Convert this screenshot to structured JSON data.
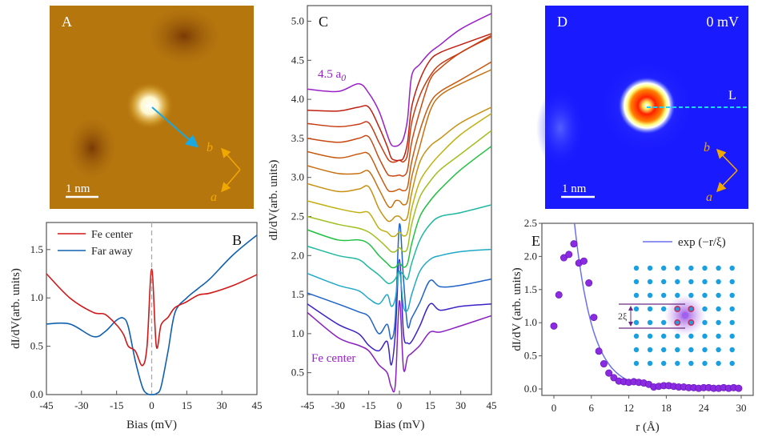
{
  "panels": {
    "A": {
      "label": "A",
      "scale_bar": "1 nm",
      "axis_a": "a",
      "axis_b": "b"
    },
    "D": {
      "label": "D",
      "bias": "0 mV",
      "line_label": "L",
      "scale_bar": "1 nm",
      "axis_a": "a",
      "axis_b": "b"
    }
  },
  "colors": {
    "fe_center": "#d01818",
    "far_away": "#1060b0",
    "fit": "#6a70f0",
    "points": "#8a2be2",
    "lattice": "#1aa0e0",
    "afm": "#b5760e",
    "map": "#1a1aff",
    "axes_arrow": "#f0a800"
  },
  "chart_data": [
    {
      "panel": "B",
      "type": "line",
      "label": "B",
      "xlabel": "Bias (mV)",
      "ylabel": "dI/dV(arb. units)",
      "xlim": [
        -45,
        45
      ],
      "ylim": [
        0,
        1.78
      ],
      "xticks": [
        -45,
        -30,
        -15,
        0,
        15,
        30,
        45
      ],
      "yticks": [
        "0.0",
        "0.5",
        "1.0",
        "1.5"
      ],
      "legend": "top-left",
      "x": [
        -45,
        -35,
        -25,
        -20,
        -15,
        -12,
        -10,
        -7,
        -4,
        -2,
        0,
        2,
        4,
        7,
        10,
        15,
        20,
        25,
        35,
        45
      ],
      "series": [
        {
          "name": "Fe center",
          "values": [
            1.25,
            1.0,
            0.85,
            0.83,
            0.72,
            0.62,
            0.5,
            0.45,
            0.3,
            0.5,
            1.3,
            0.5,
            0.72,
            0.8,
            0.9,
            0.96,
            1.03,
            1.05,
            1.13,
            1.24
          ]
        },
        {
          "name": "Far away",
          "values": [
            0.73,
            0.73,
            0.6,
            0.65,
            0.77,
            0.79,
            0.7,
            0.35,
            0.08,
            0.01,
            0.0,
            0.01,
            0.08,
            0.45,
            0.85,
            1.0,
            1.1,
            1.2,
            1.45,
            1.65
          ]
        }
      ]
    },
    {
      "panel": "C",
      "type": "line",
      "label": "C",
      "xlabel": "Bias (mV)",
      "ylabel": "dI/dV(arb. units)",
      "xlim": [
        -45,
        45
      ],
      "ylim": [
        0.22,
        5.2
      ],
      "xticks": [
        -45,
        -30,
        -15,
        0,
        15,
        30,
        45
      ],
      "yticks": [
        "0.5",
        "1.0",
        "1.5",
        "2.0",
        "2.5",
        "3.0",
        "3.5",
        "4.0",
        "4.5",
        "5.0"
      ],
      "annotations": {
        "top": "4.5 a",
        "top_sub": "0",
        "bottom": "Fe center"
      },
      "x": [
        -45,
        -30,
        -20,
        -15,
        -10,
        -6,
        -4,
        -2,
        0,
        2,
        4,
        6,
        10,
        15,
        20,
        30,
        45
      ],
      "series": [
        {
          "color": "#8a1fc0",
          "values": [
            1.27,
            0.95,
            0.85,
            0.78,
            0.6,
            0.5,
            0.32,
            0.35,
            1.42,
            0.55,
            0.7,
            0.75,
            0.85,
            1.02,
            1.02,
            1.1,
            1.23
          ]
        },
        {
          "color": "#3a22c8",
          "values": [
            1.38,
            1.12,
            1.0,
            0.85,
            0.78,
            0.9,
            0.6,
            1.0,
            1.95,
            1.0,
            0.88,
            0.9,
            1.1,
            1.38,
            1.3,
            1.35,
            1.38
          ]
        },
        {
          "color": "#1f64c8",
          "values": [
            1.52,
            1.38,
            1.28,
            1.22,
            1.0,
            1.12,
            0.93,
            1.2,
            2.4,
            1.7,
            1.1,
            1.2,
            1.4,
            1.68,
            1.6,
            1.62,
            1.7
          ]
        },
        {
          "color": "#20a8c8",
          "values": [
            1.77,
            1.62,
            1.55,
            1.45,
            1.38,
            1.5,
            1.35,
            1.45,
            1.8,
            1.35,
            1.3,
            1.5,
            1.8,
            1.95,
            2.0,
            2.05,
            2.08
          ]
        },
        {
          "color": "#20b8a0",
          "values": [
            2.12,
            2.0,
            1.95,
            1.85,
            1.75,
            1.65,
            1.65,
            1.7,
            1.8,
            1.75,
            1.7,
            1.9,
            2.2,
            2.4,
            2.5,
            2.55,
            2.65
          ]
        },
        {
          "color": "#20c040",
          "values": [
            2.33,
            2.2,
            2.2,
            2.15,
            2.0,
            1.9,
            1.85,
            1.85,
            1.9,
            1.85,
            1.9,
            2.15,
            2.5,
            2.7,
            2.85,
            3.1,
            3.4
          ]
        },
        {
          "color": "#a0c020",
          "values": [
            2.5,
            2.4,
            2.35,
            2.3,
            2.2,
            2.1,
            2.05,
            2.05,
            2.1,
            2.05,
            2.1,
            2.4,
            2.75,
            2.95,
            3.1,
            3.3,
            3.6
          ]
        },
        {
          "color": "#c0b010",
          "values": [
            2.7,
            2.6,
            2.55,
            2.55,
            2.35,
            2.3,
            2.25,
            2.25,
            2.3,
            2.25,
            2.3,
            2.6,
            2.95,
            3.15,
            3.3,
            3.55,
            3.82
          ]
        },
        {
          "color": "#c89010",
          "values": [
            2.92,
            2.82,
            2.85,
            2.88,
            2.6,
            2.45,
            2.45,
            2.5,
            2.5,
            2.45,
            2.5,
            2.8,
            3.2,
            3.4,
            3.5,
            3.7,
            3.9
          ]
        },
        {
          "color": "#c87010",
          "values": [
            3.15,
            3.05,
            3.05,
            3.08,
            2.85,
            2.65,
            2.62,
            2.7,
            2.7,
            2.65,
            2.7,
            3.0,
            3.4,
            3.85,
            4.05,
            4.2,
            4.38
          ]
        },
        {
          "color": "#c85a10",
          "values": [
            3.33,
            3.25,
            3.3,
            3.3,
            3.05,
            2.85,
            2.82,
            2.83,
            2.85,
            2.83,
            2.88,
            3.2,
            3.6,
            3.95,
            4.1,
            4.25,
            4.48
          ]
        },
        {
          "color": "#c84810",
          "values": [
            3.5,
            3.45,
            3.5,
            3.52,
            3.25,
            3.05,
            3.02,
            3.02,
            3.03,
            3.02,
            3.1,
            3.45,
            3.85,
            4.25,
            4.4,
            4.6,
            4.8
          ]
        },
        {
          "color": "#c83a10",
          "values": [
            3.69,
            3.65,
            3.68,
            3.7,
            3.45,
            3.25,
            3.2,
            3.2,
            3.22,
            3.2,
            3.3,
            3.7,
            4.05,
            4.3,
            4.45,
            4.6,
            4.82
          ]
        },
        {
          "color": "#c02010",
          "values": [
            3.86,
            3.85,
            3.9,
            3.9,
            3.65,
            3.4,
            3.25,
            3.22,
            3.22,
            3.25,
            3.45,
            3.9,
            4.25,
            4.5,
            4.6,
            4.7,
            4.84
          ]
        },
        {
          "color": "#9a20c8",
          "values": [
            4.13,
            4.1,
            4.2,
            4.08,
            3.85,
            3.55,
            3.42,
            3.4,
            3.42,
            3.5,
            3.75,
            4.3,
            4.45,
            4.6,
            4.7,
            4.9,
            5.1
          ]
        }
      ]
    },
    {
      "panel": "E",
      "type": "scatter",
      "label": "E",
      "xlabel": "r (Å)",
      "ylabel": "dI/dV (arb. units)",
      "xlim": [
        -2,
        31
      ],
      "ylim": [
        -0.1,
        2.5
      ],
      "xticks": [
        0,
        6,
        12,
        18,
        24,
        30
      ],
      "yticks": [
        "0.0",
        "0.5",
        "1.0",
        "1.5",
        "2.0",
        "2.5"
      ],
      "legend": "top-right",
      "fit": {
        "name": "exp (−r/ξ)",
        "amplitude": 7.8,
        "xi": 2.9
      },
      "inset": {
        "label": "2ξ"
      },
      "points": {
        "x": [
          0,
          0.8,
          1.6,
          2.4,
          3.2,
          4.0,
          4.8,
          5.6,
          6.4,
          7.2,
          8.0,
          8.8,
          9.6,
          10.4,
          11.2,
          12.0,
          12.8,
          13.6,
          14.4,
          15.2,
          16.0,
          16.8,
          17.6,
          18.4,
          19.2,
          20.0,
          20.8,
          21.6,
          22.4,
          23.2,
          24.0,
          24.8,
          25.6,
          26.4,
          27.2,
          28.0,
          28.8,
          29.6
        ],
        "y": [
          0.95,
          1.42,
          1.98,
          2.03,
          2.19,
          1.9,
          1.93,
          1.6,
          1.08,
          0.57,
          0.38,
          0.24,
          0.17,
          0.12,
          0.11,
          0.1,
          0.11,
          0.1,
          0.09,
          0.07,
          0.03,
          0.04,
          0.05,
          0.05,
          0.04,
          0.03,
          0.03,
          0.02,
          0.02,
          0.01,
          0.02,
          0.02,
          0.01,
          0.01,
          0.02,
          0.01,
          0.02,
          0.01
        ]
      }
    }
  ]
}
